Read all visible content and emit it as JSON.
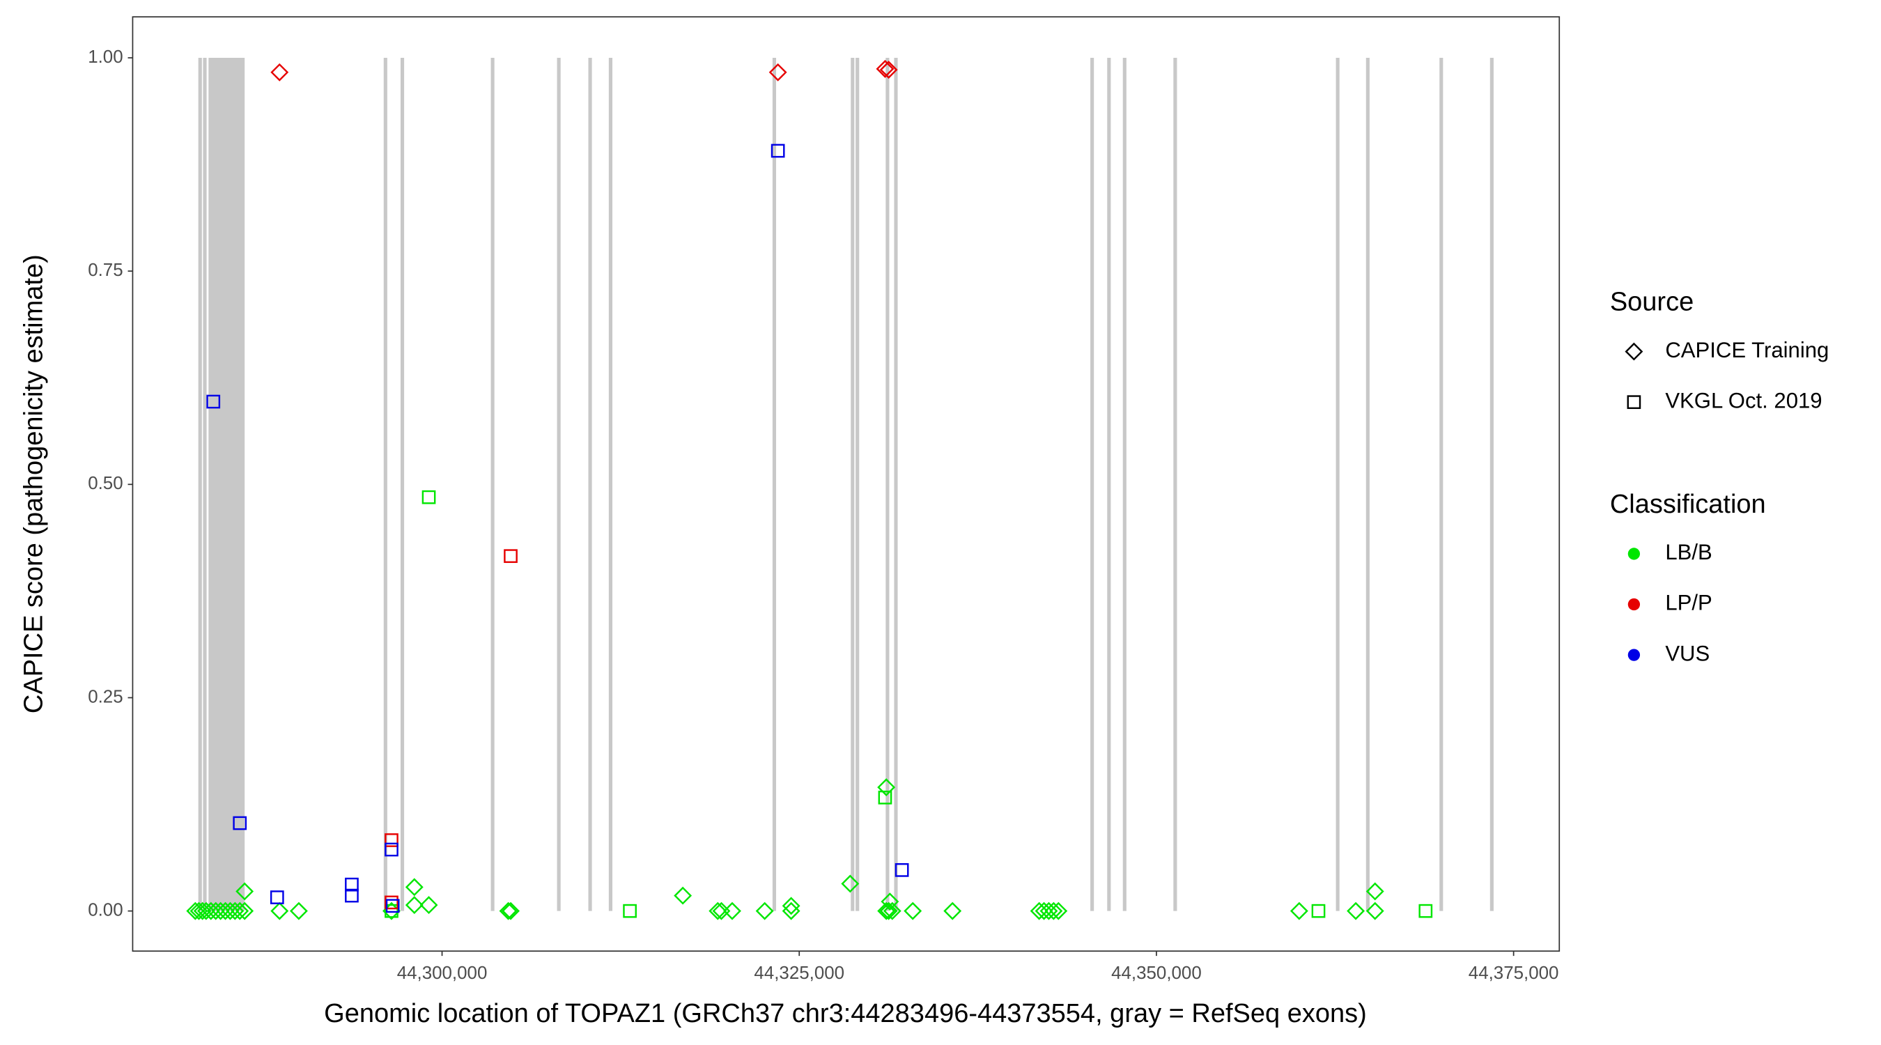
{
  "chart_data": {
    "type": "scatter",
    "x_label": "Genomic location of TOPAZ1 (GRCh37 chr3:44283496-44373554, gray = RefSeq exons)",
    "y_label": "CAPICE score (pathogenicity estimate)",
    "xlim": [
      44278345,
      44378200
    ],
    "ylim": [
      -0.047,
      1.048
    ],
    "xticks": [
      {
        "value": 44300000,
        "label": "44,300,000"
      },
      {
        "value": 44325000,
        "label": "44,325,000"
      },
      {
        "value": 44350000,
        "label": "44,350,000"
      },
      {
        "value": 44375000,
        "label": "44,375,000"
      }
    ],
    "yticks": [
      {
        "value": 0,
        "label": "0.00"
      },
      {
        "value": 0.25,
        "label": "0.25"
      },
      {
        "value": 0.5,
        "label": "0.50"
      },
      {
        "value": 0.75,
        "label": "0.75"
      },
      {
        "value": 1,
        "label": "1.00"
      }
    ],
    "exon_color": "#c8c8c8",
    "exons": [
      [
        44282940,
        44283190
      ],
      [
        44283270,
        44283520
      ],
      [
        44283654,
        44286182
      ],
      [
        44295915,
        44296165
      ],
      [
        44297095,
        44297345
      ],
      [
        44303414,
        44303664
      ],
      [
        44308048,
        44308298
      ],
      [
        44310239,
        44310489
      ],
      [
        44311671,
        44311921
      ],
      [
        44323131,
        44323381
      ],
      [
        44328608,
        44328858
      ],
      [
        44328945,
        44329195
      ],
      [
        44331051,
        44331301
      ],
      [
        44331641,
        44331891
      ],
      [
        44345375,
        44345625
      ],
      [
        44346555,
        44346805
      ],
      [
        44347650,
        44347900
      ],
      [
        44351189,
        44351439
      ],
      [
        44362564,
        44362814
      ],
      [
        44364671,
        44364921
      ],
      [
        44369811,
        44370061
      ],
      [
        44373350,
        44373600
      ]
    ],
    "legend_source_title": "Source",
    "legend_class_title": "Classification",
    "sources": [
      {
        "name": "CAPICE Training",
        "shape": "diamond"
      },
      {
        "name": "VKGL Oct. 2019",
        "shape": "square"
      }
    ],
    "classifications": [
      {
        "name": "LB/B",
        "color": "#00e600"
      },
      {
        "name": "LP/P",
        "color": "#e60000"
      },
      {
        "name": "VUS",
        "color": "#0000e6"
      }
    ],
    "series": [
      {
        "source": "CAPICE Training",
        "classification": "LB/B",
        "x": [
          44282727,
          44282979,
          44283232,
          44283485,
          44283822,
          44284159,
          44284496,
          44284833,
          44285170,
          44285507,
          44285844,
          44286181,
          44286181,
          44288625,
          44289973,
          44296461,
          44298062,
          44298062,
          44299073,
          44304634,
          44304803,
          44316852,
          44319296,
          44319549,
          44320307,
          44322582,
          44324435,
          44324435,
          44328564,
          44331092,
          44331345,
          44331092,
          44331261,
          44331513,
          44332946,
          44335726,
          44341793,
          44342130,
          44342467,
          44342804,
          44343141,
          44359993,
          44363953,
          44365302,
          44365302
        ],
        "y": [
          0,
          0,
          0,
          0,
          0,
          0,
          0,
          0,
          0,
          0,
          0,
          0,
          0.023,
          0,
          0,
          0,
          0.028,
          0.007,
          0.007,
          0,
          0,
          0.018,
          0,
          0,
          0,
          0,
          0.006,
          0,
          0.032,
          0.145,
          0.011,
          0,
          0,
          0,
          0,
          0,
          0,
          0,
          0,
          0,
          0,
          0,
          0,
          0.023,
          0
        ]
      },
      {
        "source": "VKGL Oct. 2019",
        "classification": "LB/B",
        "x": [
          44299073,
          44296461,
          44313145,
          44331008,
          44361341,
          44368840
        ],
        "y": [
          0.485,
          0,
          0,
          0.133,
          0,
          0
        ]
      },
      {
        "source": "CAPICE Training",
        "classification": "LP/P",
        "x": [
          44288625,
          44323509,
          44331008,
          44331261
        ],
        "y": [
          0.983,
          0.983,
          0.987,
          0.986
        ]
      },
      {
        "source": "VKGL Oct. 2019",
        "classification": "LP/P",
        "x": [
          44304803,
          44296461,
          44296461
        ],
        "y": [
          0.416,
          0.083,
          0.01
        ]
      },
      {
        "source": "VKGL Oct. 2019",
        "classification": "VUS",
        "x": [
          44283991,
          44285844,
          44288456,
          44293680,
          44293680,
          44296461,
          44296545,
          44323509,
          44332187
        ],
        "y": [
          0.597,
          0.103,
          0.016,
          0.031,
          0.018,
          0.072,
          0.006,
          0.891,
          0.048
        ]
      }
    ]
  }
}
